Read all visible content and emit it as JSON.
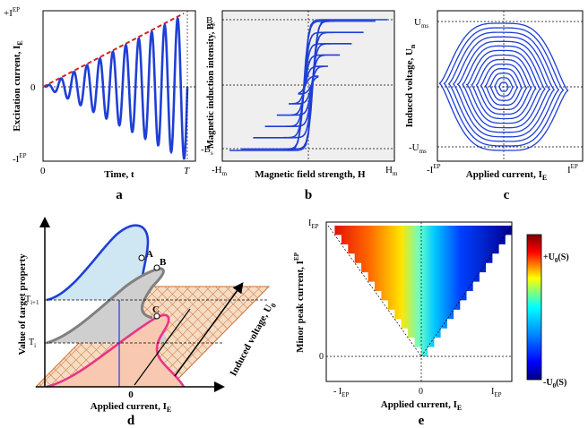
{
  "panel_a": {
    "letter": "a",
    "ylabel": "Excitation current, I",
    "ylabel_sub": "E",
    "xlabel": "Time, t",
    "ytick_top": "+I",
    "ytick_top_sup": "EP",
    "ytick_zero": "0",
    "ytick_bottom": "-I",
    "ytick_bottom_sup": "EP",
    "xtick_left": "0",
    "xtick_right": "T",
    "colors": {
      "wave": "#1f3fd6",
      "envelope": "#d62222"
    }
  },
  "panel_b": {
    "letter": "b",
    "ylabel": "Magnetic induction intensity, B",
    "xlabel": "Magnetic field strength, H",
    "ytick_top": "B",
    "ytick_top_sub": "s",
    "ytick_bottom": "-B",
    "ytick_bottom_sub": "s",
    "xtick_left": "-H",
    "xtick_left_sub": "m",
    "xtick_right": "H",
    "xtick_right_sub": "m",
    "colors": {
      "loop": "#1f3fd6",
      "bg": "#efefef"
    }
  },
  "panel_c": {
    "letter": "c",
    "ylabel": "Induced voltage, U",
    "ylabel_sub": "n",
    "xlabel": "Applied current, I",
    "xlabel_sub": "E",
    "ytick_top": "U",
    "ytick_top_sub": "ms",
    "ytick_bottom": "-U",
    "ytick_bottom_sub": "ms",
    "xtick_left": "-I",
    "xtick_left_sup": "EP",
    "xtick_right": "I",
    "xtick_right_sup": "EP",
    "colors": {
      "loop": "#1f3fd6"
    }
  },
  "panel_d": {
    "letter": "d",
    "ylabel": "Value of target property",
    "xlabel": "Applied current, I",
    "xlabel_sub": "E",
    "zlabel": "Induced voltage, U",
    "zlabel_sub": "0",
    "tick_zero": "0",
    "level_upper": "T",
    "level_upper_sub": "i+1",
    "level_lower": "T",
    "level_lower_sub": "i",
    "points": [
      "A",
      "B",
      "C"
    ],
    "colors": {
      "blue_curve": "#1f3fd6",
      "gray_curve": "#808080",
      "pink_curve": "#e8358a",
      "hatch": "#c8703a"
    }
  },
  "panel_e": {
    "letter": "e",
    "ylabel": "Minor peak current, I",
    "ylabel_sup": "EP",
    "xlabel": "Applied current, I",
    "xlabel_sub": "E",
    "ytick_top": "I",
    "ytick_top_sub": "EP",
    "ytick_zero": "0",
    "xtick_left": "- I",
    "xtick_left_sub": "EP",
    "xtick_mid": "0",
    "xtick_right": "I",
    "xtick_right_sub": "EP",
    "colorbar_top": "+U",
    "colorbar_top_sub": "0",
    "colorbar_top_suffix": "(S)",
    "colorbar_bottom": "-U",
    "colorbar_bottom_sub": "0",
    "colorbar_bottom_suffix": "(S)"
  }
}
